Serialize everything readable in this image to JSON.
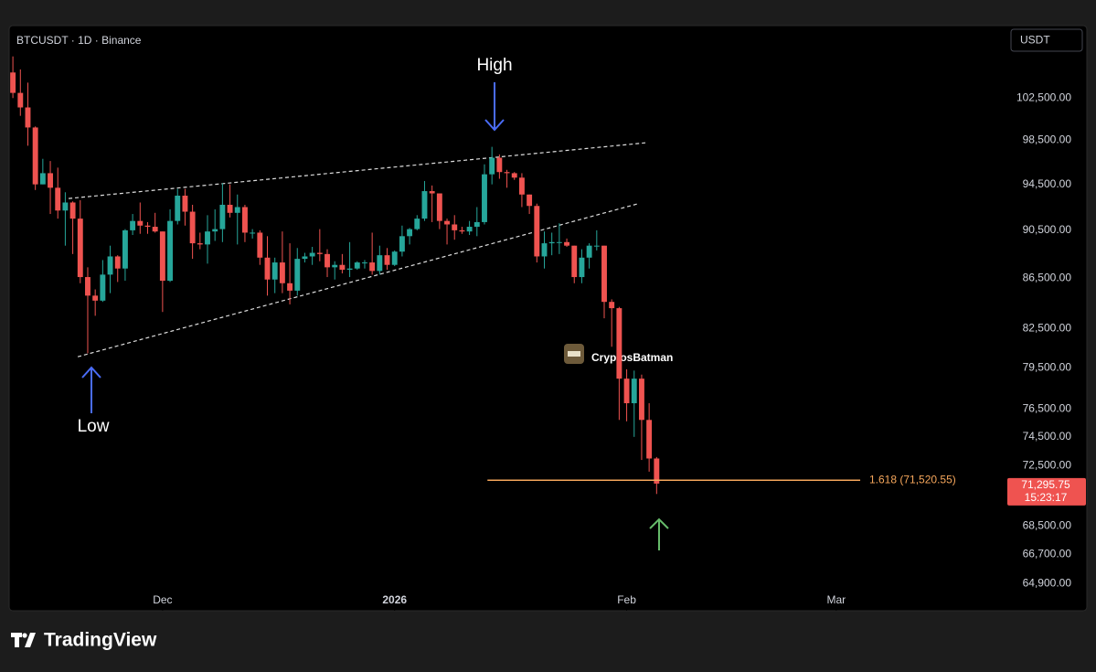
{
  "chart_data": {
    "type": "candlestick",
    "title": "BTCUSDT · 1D · Binance",
    "currency": "USDT",
    "log_scale": true,
    "up_color": "#26a69a",
    "down_color": "#ef5350",
    "xlim": [
      -0.5,
      132
    ],
    "xticks": [
      {
        "value": 20,
        "label": "Dec"
      },
      {
        "value": 51,
        "label": "2026"
      },
      {
        "value": 82,
        "label": "Feb"
      },
      {
        "value": 110,
        "label": "Mar"
      }
    ],
    "ylim": [
      63250,
      109550
    ],
    "yticks": [
      {
        "value": 102500,
        "label": "102,500.00"
      },
      {
        "value": 98500,
        "label": "98,500.00"
      },
      {
        "value": 94500,
        "label": "94,500.00"
      },
      {
        "value": 90500,
        "label": "90,500.00"
      },
      {
        "value": 86500,
        "label": "86,500.00"
      },
      {
        "value": 82500,
        "label": "82,500.00"
      },
      {
        "value": 79500,
        "label": "79,500.00"
      },
      {
        "value": 76500,
        "label": "76,500.00"
      },
      {
        "value": 74500,
        "label": "74,500.00"
      },
      {
        "value": 72500,
        "label": "72,500.00"
      },
      {
        "value": 68500,
        "label": "68,500.00"
      },
      {
        "value": 66700,
        "label": "66,700.00"
      },
      {
        "value": 64900,
        "label": "64,900.00"
      }
    ],
    "open": [
      105000,
      103000,
      101600,
      99700,
      94500,
      95500,
      94200,
      92200,
      92900,
      91500,
      86600,
      85100,
      84700,
      86800,
      88300,
      87300,
      90500,
      91300,
      90900,
      90800,
      90400,
      86300,
      91300,
      93500,
      92100,
      89400,
      89300,
      90400,
      90600,
      92700,
      92000,
      92500,
      90300,
      90300,
      88200,
      86400,
      87800,
      86100,
      85500,
      88100,
      88300,
      88600,
      88500,
      87400,
      87600,
      87200,
      87300,
      87800,
      87800,
      87100,
      88400,
      87600,
      88700,
      90000,
      90600,
      91500,
      93900,
      93700,
      91300,
      91000,
      90500,
      90400,
      90800,
      91200,
      95400,
      96900,
      95600,
      95500,
      95100,
      93600,
      92600,
      88300,
      89400,
      89500,
      89500,
      89200,
      86600,
      88200,
      89200,
      89200,
      84600,
      84100,
      78700,
      76900,
      78700,
      75700,
      73000
    ],
    "high": [
      106600,
      105300,
      104000,
      99800,
      96800,
      96600,
      96000,
      93800,
      93000,
      93100,
      87400,
      85600,
      88000,
      89200,
      88400,
      90600,
      91900,
      92900,
      91200,
      92000,
      90400,
      92300,
      94100,
      94100,
      92700,
      90300,
      91800,
      92300,
      94600,
      94500,
      93600,
      92700,
      90600,
      90500,
      90000,
      88200,
      90400,
      89400,
      89000,
      88600,
      89100,
      90600,
      88900,
      87900,
      88500,
      89500,
      87900,
      88000,
      90300,
      89200,
      89000,
      88800,
      90900,
      90700,
      91800,
      94800,
      94400,
      93700,
      91500,
      91800,
      90800,
      91300,
      92500,
      96300,
      97900,
      97200,
      95800,
      95600,
      95500,
      93600,
      92800,
      90400,
      90300,
      91100,
      89800,
      89200,
      88900,
      89400,
      90500,
      89200,
      84800,
      84200,
      79400,
      79300,
      79000,
      76900,
      73100
    ],
    "low": [
      102500,
      100800,
      98000,
      94000,
      94500,
      91900,
      91500,
      89200,
      88500,
      86100,
      80600,
      83500,
      84600,
      85300,
      86200,
      86300,
      90100,
      90200,
      90200,
      90300,
      83800,
      86200,
      91000,
      90900,
      88100,
      88900,
      87700,
      89600,
      89500,
      91600,
      89300,
      89500,
      89800,
      87600,
      85100,
      85300,
      85300,
      84400,
      85100,
      87800,
      87600,
      87900,
      86600,
      86400,
      86900,
      86600,
      87200,
      87300,
      86800,
      86800,
      87200,
      87500,
      88300,
      89300,
      90500,
      91300,
      91200,
      90600,
      89300,
      89700,
      90200,
      90100,
      90000,
      91000,
      94500,
      95000,
      94200,
      94900,
      92500,
      91900,
      87800,
      87300,
      88400,
      88500,
      89100,
      86100,
      86100,
      87300,
      88800,
      83300,
      81100,
      75700,
      75600,
      74500,
      72900,
      72100,
      70600
    ],
    "close": [
      103000,
      101600,
      99700,
      94500,
      95500,
      94200,
      92200,
      92900,
      91500,
      86600,
      85100,
      84700,
      86800,
      88300,
      87300,
      90500,
      91300,
      90900,
      90800,
      90400,
      86300,
      91300,
      93500,
      92100,
      89400,
      89300,
      90400,
      90600,
      92700,
      92000,
      92500,
      90300,
      90300,
      88200,
      86400,
      87800,
      86100,
      85500,
      88100,
      88300,
      88600,
      88500,
      87400,
      87600,
      87200,
      87300,
      87800,
      87800,
      87100,
      88400,
      87600,
      88700,
      90000,
      90600,
      91500,
      93900,
      93700,
      91300,
      91000,
      90500,
      90400,
      90800,
      91200,
      95400,
      96900,
      95600,
      95500,
      95100,
      93600,
      92600,
      88300,
      89400,
      89500,
      89500,
      89200,
      86600,
      88200,
      89200,
      89200,
      84600,
      84100,
      78700,
      76900,
      78700,
      75700,
      73000,
      71295.75
    ],
    "trendlines": [
      {
        "x": [
          7.45,
          84.5
        ],
        "y": [
          93250,
          98270
        ]
      },
      {
        "x": [
          8.67,
          83.4
        ],
        "y": [
          80340,
          92770
        ]
      }
    ],
    "fib_level": {
      "value": 71520.55,
      "label": "1.618 (71,520.55)",
      "x": [
        63.4,
        113.2
      ],
      "color": "#f5a65b"
    },
    "last_price": {
      "value": 71295.75,
      "label": "71,295.75"
    },
    "countdown": "15:23:17",
    "annotations": {
      "high": "High",
      "low": "Low",
      "watermark": "CryptosBatman"
    },
    "brand": "TradingView"
  }
}
